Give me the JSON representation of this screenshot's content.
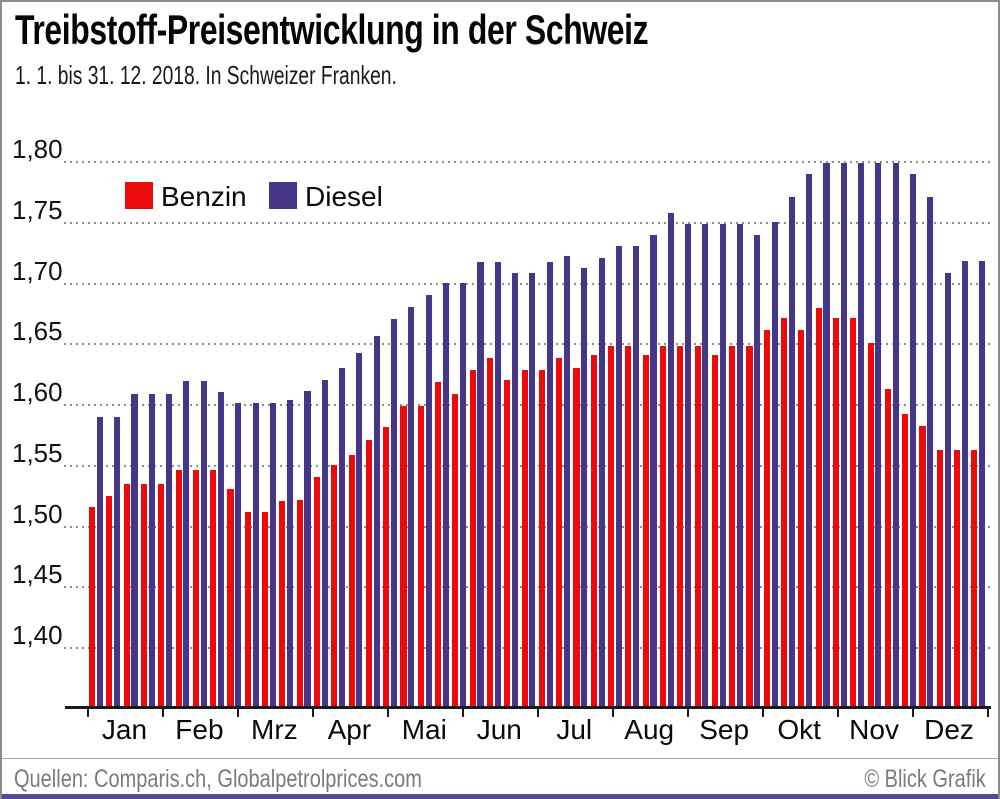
{
  "header": {
    "title": "Treibstoff-Preisentwicklung in der Schweiz",
    "subtitle": "1. 1. bis 31. 12. 2018. In Schweizer Franken."
  },
  "legend": {
    "items": [
      {
        "label": "Benzin",
        "color": "#ee0a0a"
      },
      {
        "label": "Diesel",
        "color": "#473587"
      }
    ]
  },
  "chart_data": {
    "type": "bar",
    "title": "Treibstoff-Preisentwicklung in der Schweiz",
    "subtitle": "1.1. bis 31.12.2018, in Schweizer Franken",
    "categories": [
      "Jan",
      "Feb",
      "Mrz",
      "Apr",
      "Mai",
      "Jun",
      "Jul",
      "Aug",
      "Sep",
      "Okt",
      "Nov",
      "Dez"
    ],
    "weeks_per_month": [
      4,
      5,
      4,
      5,
      4,
      4,
      5,
      4,
      4,
      5,
      4,
      4
    ],
    "y_tick_labels": [
      "1,80",
      "1,75",
      "1,70",
      "1,65",
      "1,60",
      "1,55",
      "1,50",
      "1,45",
      "1,40"
    ],
    "ylim": [
      1.4,
      1.8
    ],
    "grid": "dotted-horizontal",
    "legend_position": "top-left-inside",
    "series": [
      {
        "name": "Benzin",
        "color": "#ee0a0a",
        "values": [
          1.515,
          1.524,
          1.534,
          1.534,
          1.534,
          1.546,
          1.546,
          1.546,
          1.53,
          1.511,
          1.511,
          1.52,
          1.521,
          1.54,
          1.55,
          1.558,
          1.57,
          1.581,
          1.598,
          1.598,
          1.618,
          1.608,
          1.628,
          1.638,
          1.62,
          1.628,
          1.628,
          1.638,
          1.63,
          1.64,
          1.648,
          1.648,
          1.64,
          1.648,
          1.648,
          1.648,
          1.64,
          1.648,
          1.648,
          1.661,
          1.671,
          1.661,
          1.679,
          1.671,
          1.671,
          1.65,
          1.612,
          1.592,
          1.582,
          1.562,
          1.562,
          1.562
        ]
      },
      {
        "name": "Diesel",
        "color": "#473587",
        "values": [
          1.589,
          1.589,
          1.608,
          1.608,
          1.608,
          1.619,
          1.619,
          1.61,
          1.601,
          1.601,
          1.601,
          1.603,
          1.611,
          1.62,
          1.63,
          1.642,
          1.656,
          1.67,
          1.68,
          1.69,
          1.7,
          1.7,
          1.717,
          1.717,
          1.708,
          1.708,
          1.717,
          1.722,
          1.712,
          1.72,
          1.73,
          1.73,
          1.739,
          1.757,
          1.748,
          1.748,
          1.748,
          1.748,
          1.739,
          1.75,
          1.77,
          1.789,
          1.798,
          1.798,
          1.798,
          1.798,
          1.798,
          1.789,
          1.77,
          1.708,
          1.718,
          1.718
        ]
      }
    ]
  },
  "footer": {
    "sources": "Quellen: Comparis.ch, Globalpetrolprices.com",
    "credit": "© Blick Grafik"
  }
}
